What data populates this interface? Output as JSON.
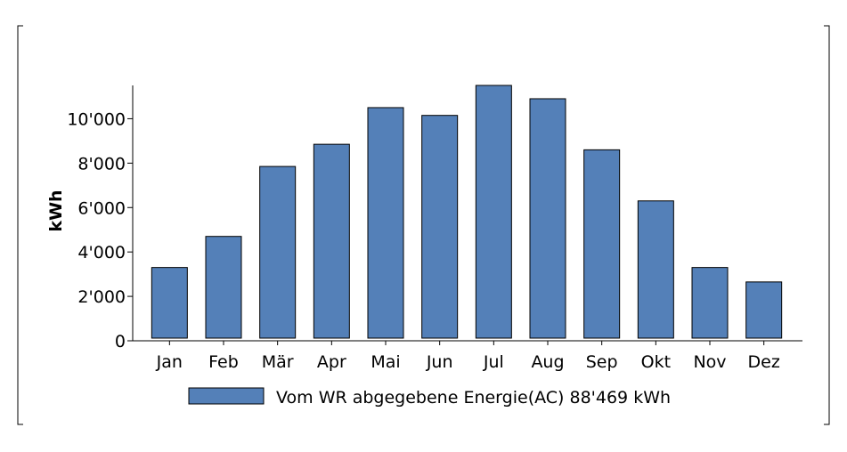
{
  "chart_data": {
    "type": "bar",
    "categories": [
      "Jan",
      "Feb",
      "Mär",
      "Apr",
      "Mai",
      "Jun",
      "Jul",
      "Aug",
      "Sep",
      "Okt",
      "Nov",
      "Dez"
    ],
    "series": [
      {
        "name": "Vom WR abgegebene Energie(AC) 88'469 kWh",
        "values": [
          3300,
          4700,
          7850,
          8850,
          10500,
          10150,
          11500,
          10900,
          8600,
          6300,
          3300,
          2650
        ]
      }
    ],
    "ylabel": "kWh",
    "ylim": [
      0,
      11500
    ],
    "yticks": [
      0,
      2000,
      4000,
      6000,
      8000,
      10000
    ],
    "ytick_labels": [
      "0",
      "2'000",
      "4'000",
      "6'000",
      "8'000",
      "10'000"
    ],
    "bar_color": "#5480B8",
    "bar_edge_color": "#000000",
    "grid": false,
    "legend_position": "bottom"
  }
}
